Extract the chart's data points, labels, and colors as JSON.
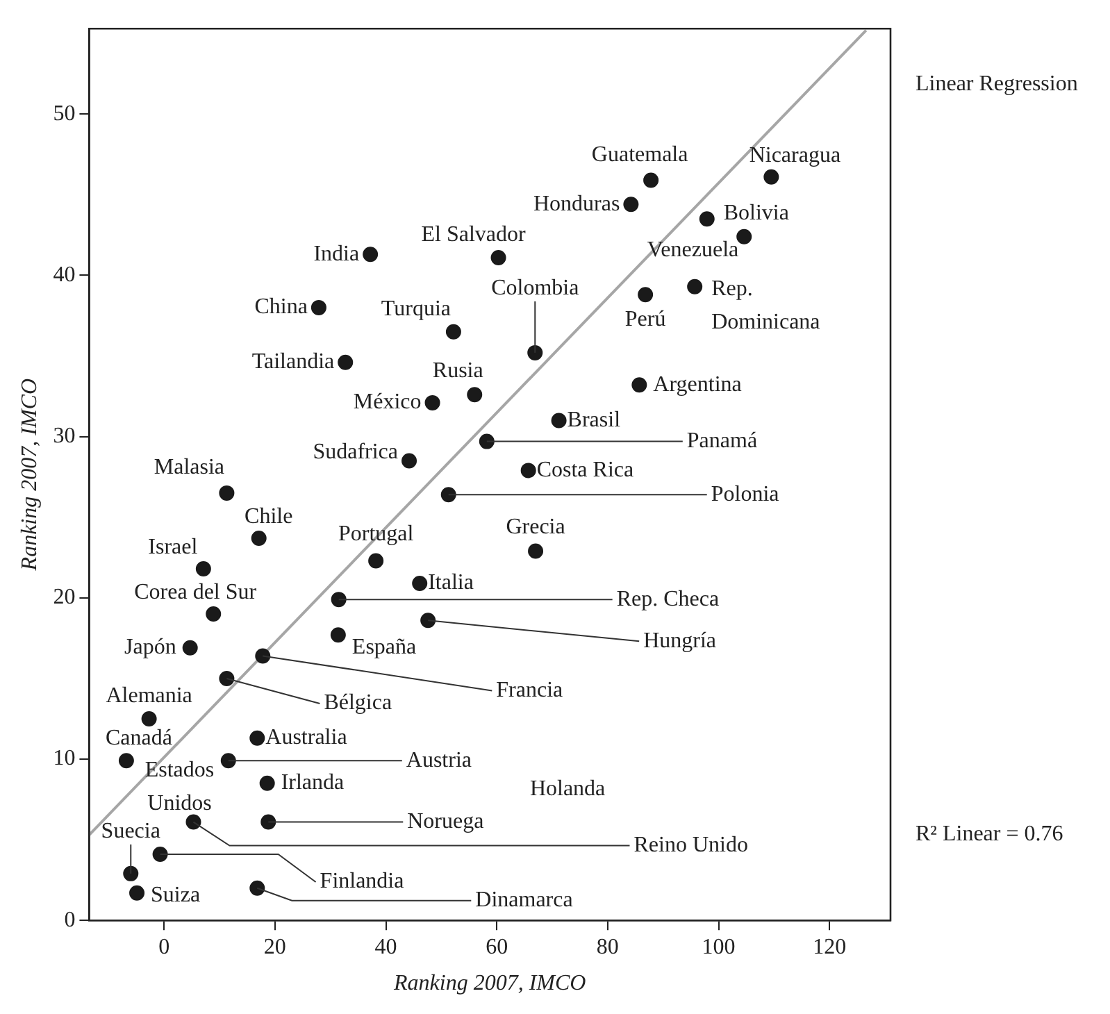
{
  "chart_data": {
    "type": "scatter",
    "xlabel": "Ranking 2007, IMCO",
    "ylabel": "Ranking 2007, IMCO",
    "xlim": [
      -13.5,
      131
    ],
    "ylim": [
      0,
      55.3
    ],
    "xticks": [
      0,
      20,
      40,
      60,
      80,
      100,
      120
    ],
    "yticks": [
      0,
      10,
      20,
      30,
      40,
      50
    ],
    "grid": false,
    "legend": false,
    "marker": "circle",
    "series": [
      {
        "type": "scatter",
        "color": "#1a1a1a",
        "x": [
          37.2,
          27.9,
          52.2,
          32.7,
          56.0,
          48.4,
          44.2,
          58.2,
          87.8,
          109.5,
          84.2,
          97.9,
          104.6,
          60.3,
          66.9,
          86.8,
          95.7,
          85.7,
          71.2,
          65.7,
          51.3,
          67.0,
          11.3,
          17.1,
          38.2,
          7.1,
          46.1,
          31.5,
          8.9,
          47.6,
          31.4,
          4.7,
          17.8,
          11.3,
          -2.7,
          16.8,
          -6.8,
          11.6,
          18.6,
          5.3,
          null,
          18.8,
          -0.7,
          -6.0,
          -4.9,
          16.8
        ],
        "values": [
          41.3,
          38.0,
          36.5,
          34.6,
          32.6,
          32.1,
          28.5,
          29.7,
          45.9,
          46.1,
          44.4,
          43.5,
          42.4,
          41.1,
          35.2,
          38.8,
          39.3,
          33.2,
          31.0,
          27.9,
          26.4,
          22.9,
          26.5,
          23.7,
          22.3,
          21.8,
          20.9,
          19.9,
          19.0,
          18.6,
          17.7,
          16.9,
          16.4,
          15.0,
          12.5,
          11.3,
          9.9,
          9.9,
          8.5,
          6.1,
          null,
          6.1,
          4.1,
          2.9,
          1.7,
          2.0
        ]
      },
      {
        "type": "line",
        "name": "Linear Regression",
        "color": "#a6a6a6",
        "marker": "none",
        "line_style": "solid",
        "x": [
          -13.5,
          126.6
        ],
        "values": [
          5.3,
          55.2
        ]
      }
    ],
    "annotations": [
      {
        "text": "India",
        "x": 37.2,
        "y": 41.3
      },
      {
        "text": "China",
        "x": 27.9,
        "y": 38.0
      },
      {
        "text": "Turquia",
        "x": 52.2,
        "y": 36.5
      },
      {
        "text": "Tailandia",
        "x": 32.7,
        "y": 34.6
      },
      {
        "text": "Rusia",
        "x": 56.0,
        "y": 32.6
      },
      {
        "text": "México",
        "x": 48.4,
        "y": 32.1
      },
      {
        "text": "Sudafrica",
        "x": 44.2,
        "y": 28.5
      },
      {
        "text": "Panamá",
        "x": 58.2,
        "y": 29.7
      },
      {
        "text": "Guatemala",
        "x": 87.8,
        "y": 45.9
      },
      {
        "text": "Nicaragua",
        "x": 109.5,
        "y": 46.1
      },
      {
        "text": "Honduras",
        "x": 84.2,
        "y": 44.4
      },
      {
        "text": "Bolivia",
        "x": 97.9,
        "y": 43.5
      },
      {
        "text": "Venezuela",
        "x": 104.6,
        "y": 42.4
      },
      {
        "text": "El Salvador",
        "x": 60.3,
        "y": 41.1
      },
      {
        "text": "Colombia",
        "x": 66.9,
        "y": 35.2
      },
      {
        "text": "Perú",
        "x": 86.8,
        "y": 38.8
      },
      {
        "text": "Rep. Dominicana",
        "x": 95.7,
        "y": 39.3
      },
      {
        "text": "Argentina",
        "x": 85.7,
        "y": 33.2
      },
      {
        "text": "Brasil",
        "x": 71.2,
        "y": 31.0
      },
      {
        "text": "Costa Rica",
        "x": 65.7,
        "y": 27.9
      },
      {
        "text": "Polonia",
        "x": 51.3,
        "y": 26.4
      },
      {
        "text": "Grecia",
        "x": 67.0,
        "y": 22.9
      },
      {
        "text": "Malasia",
        "x": 11.3,
        "y": 26.5
      },
      {
        "text": "Chile",
        "x": 17.1,
        "y": 23.7
      },
      {
        "text": "Portugal",
        "x": 38.2,
        "y": 22.3
      },
      {
        "text": "Israel",
        "x": 7.1,
        "y": 21.8
      },
      {
        "text": "Italia",
        "x": 46.1,
        "y": 20.9
      },
      {
        "text": "Rep. Checa",
        "x": 31.5,
        "y": 19.9
      },
      {
        "text": "Corea del Sur",
        "x": 8.9,
        "y": 19.0
      },
      {
        "text": "Hungría",
        "x": 47.6,
        "y": 18.6
      },
      {
        "text": "España",
        "x": 31.4,
        "y": 17.7
      },
      {
        "text": "Japón",
        "x": 4.7,
        "y": 16.9
      },
      {
        "text": "Francia",
        "x": 17.8,
        "y": 16.4
      },
      {
        "text": "Bélgica",
        "x": 11.3,
        "y": 15.0
      },
      {
        "text": "Alemania",
        "x": -2.7,
        "y": 12.5
      },
      {
        "text": "Australia",
        "x": 16.8,
        "y": 11.3
      },
      {
        "text": "Canadá",
        "x": -6.8,
        "y": 9.9
      },
      {
        "text": "Austria",
        "x": 11.6,
        "y": 9.9
      },
      {
        "text": "Irlanda",
        "x": 18.6,
        "y": 8.5
      },
      {
        "text": "Estados Unidos",
        "x": 5.3,
        "y": 6.1
      },
      {
        "text": "Reino Unido",
        "x": 5.3,
        "y": 6.1
      },
      {
        "text": "Noruega",
        "x": 18.8,
        "y": 6.1
      },
      {
        "text": "Finlandia",
        "x": -0.7,
        "y": 4.1
      },
      {
        "text": "Suecia",
        "x": -6.0,
        "y": 2.9
      },
      {
        "text": "Suiza",
        "x": -4.9,
        "y": 1.7
      },
      {
        "text": "Dinamarca",
        "x": 16.8,
        "y": 2.0
      },
      "Holanda",
      "R² Linear = 0.76"
    ]
  }
}
